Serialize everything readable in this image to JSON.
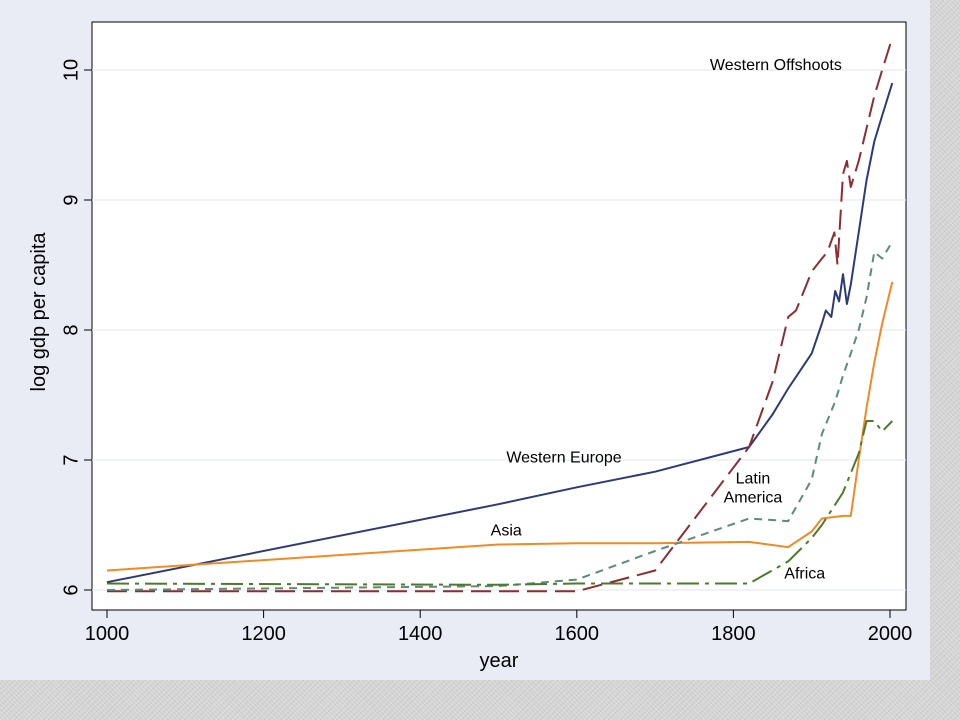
{
  "chart_data": {
    "type": "line",
    "xlabel": "year",
    "ylabel": "log gdp per capita",
    "xlim": [
      1000,
      2000
    ],
    "ylim": [
      5.9,
      10.35
    ],
    "x_ticks": [
      1000,
      1200,
      1400,
      1600,
      1800,
      2000
    ],
    "y_ticks": [
      6,
      7,
      8,
      9,
      10
    ],
    "grid": "horizontal",
    "colors": {
      "western_europe": "#2e3a78",
      "asia": "#f08a24",
      "western_offshoots": "#8a2e33",
      "latin_america": "#5c8a7c",
      "africa": "#4d7a2a"
    },
    "series": [
      {
        "name": "Western Europe",
        "style": "solid",
        "points": [
          [
            1000,
            6.06
          ],
          [
            1500,
            6.66
          ],
          [
            1600,
            6.79
          ],
          [
            1700,
            6.91
          ],
          [
            1820,
            7.1
          ],
          [
            1850,
            7.35
          ],
          [
            1870,
            7.55
          ],
          [
            1900,
            7.82
          ],
          [
            1913,
            8.05
          ],
          [
            1918,
            8.15
          ],
          [
            1925,
            8.1
          ],
          [
            1930,
            8.3
          ],
          [
            1935,
            8.22
          ],
          [
            1940,
            8.43
          ],
          [
            1945,
            8.2
          ],
          [
            1950,
            8.35
          ],
          [
            1960,
            8.75
          ],
          [
            1970,
            9.15
          ],
          [
            1980,
            9.45
          ],
          [
            1990,
            9.65
          ],
          [
            2003,
            9.9
          ]
        ]
      },
      {
        "name": "Asia",
        "style": "solid",
        "points": [
          [
            1000,
            6.15
          ],
          [
            1500,
            6.35
          ],
          [
            1600,
            6.36
          ],
          [
            1700,
            6.36
          ],
          [
            1820,
            6.37
          ],
          [
            1870,
            6.33
          ],
          [
            1900,
            6.45
          ],
          [
            1913,
            6.55
          ],
          [
            1940,
            6.57
          ],
          [
            1950,
            6.57
          ],
          [
            1960,
            7.0
          ],
          [
            1970,
            7.4
          ],
          [
            1980,
            7.75
          ],
          [
            1990,
            8.05
          ],
          [
            2003,
            8.37
          ]
        ]
      },
      {
        "name": "Western Offshoots",
        "style": "long-dash",
        "points": [
          [
            1000,
            5.99
          ],
          [
            1500,
            5.99
          ],
          [
            1600,
            5.99
          ],
          [
            1700,
            6.15
          ],
          [
            1820,
            7.1
          ],
          [
            1850,
            7.6
          ],
          [
            1870,
            8.1
          ],
          [
            1880,
            8.15
          ],
          [
            1890,
            8.3
          ],
          [
            1900,
            8.45
          ],
          [
            1913,
            8.55
          ],
          [
            1920,
            8.6
          ],
          [
            1929,
            8.75
          ],
          [
            1933,
            8.5
          ],
          [
            1940,
            9.2
          ],
          [
            1945,
            9.3
          ],
          [
            1950,
            9.1
          ],
          [
            1960,
            9.3
          ],
          [
            1970,
            9.55
          ],
          [
            1980,
            9.8
          ],
          [
            1990,
            10.0
          ],
          [
            2003,
            10.25
          ]
        ]
      },
      {
        "name": "Latin America",
        "style": "short-dash",
        "points": [
          [
            1000,
            6.0
          ],
          [
            1500,
            6.03
          ],
          [
            1600,
            6.08
          ],
          [
            1700,
            6.3
          ],
          [
            1820,
            6.55
          ],
          [
            1870,
            6.53
          ],
          [
            1900,
            6.85
          ],
          [
            1913,
            7.2
          ],
          [
            1930,
            7.45
          ],
          [
            1940,
            7.65
          ],
          [
            1950,
            7.82
          ],
          [
            1960,
            8.0
          ],
          [
            1970,
            8.25
          ],
          [
            1980,
            8.6
          ],
          [
            1990,
            8.55
          ],
          [
            2003,
            8.68
          ]
        ]
      },
      {
        "name": "Africa",
        "style": "dash-dot",
        "points": [
          [
            1000,
            6.05
          ],
          [
            1500,
            6.04
          ],
          [
            1600,
            6.05
          ],
          [
            1700,
            6.05
          ],
          [
            1820,
            6.05
          ],
          [
            1870,
            6.22
          ],
          [
            1900,
            6.4
          ],
          [
            1913,
            6.5
          ],
          [
            1940,
            6.75
          ],
          [
            1950,
            6.9
          ],
          [
            1960,
            7.05
          ],
          [
            1970,
            7.3
          ],
          [
            1980,
            7.3
          ],
          [
            1990,
            7.22
          ],
          [
            2003,
            7.3
          ]
        ]
      }
    ],
    "annotations": [
      {
        "series": "Western Offshoots",
        "lines": [
          "Western Offshoots"
        ],
        "x": 1770,
        "y": 10.0
      },
      {
        "series": "Western Europe",
        "lines": [
          "Western Europe"
        ],
        "x": 1510,
        "y": 6.98
      },
      {
        "series": "Latin America",
        "lines": [
          "Latin",
          "America"
        ],
        "x": 1825,
        "y": 6.82
      },
      {
        "series": "Asia",
        "lines": [
          "Asia"
        ],
        "x": 1490,
        "y": 6.42
      },
      {
        "series": "Africa",
        "lines": [
          "Africa"
        ],
        "x": 1865,
        "y": 6.09
      }
    ]
  }
}
